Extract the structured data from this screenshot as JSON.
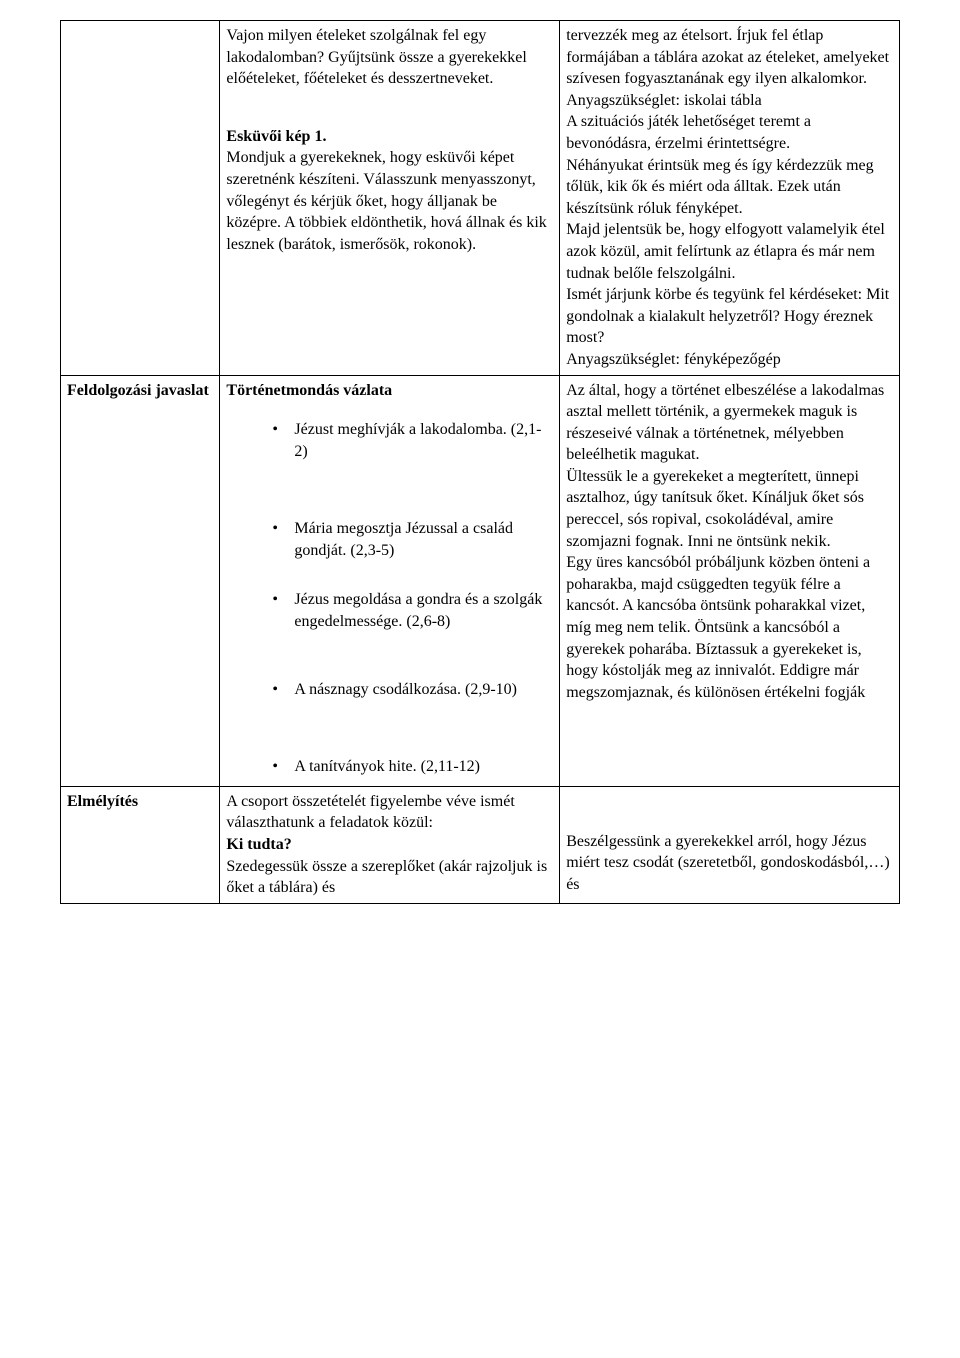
{
  "row1": {
    "label": "",
    "mid": {
      "p1": "Vajon milyen ételeket szolgálnak fel egy lakodalomban? Gyűjtsünk össze a gyerekekkel előételeket, főételeket és desszertneveket.",
      "h1": "Esküvői kép 1.",
      "p2": "Mondjuk a gyerekeknek, hogy esküvői képet szeretnénk készíteni. Válasszunk menyasszonyt, vőlegényt és kérjük őket, hogy álljanak be középre. A többiek eldönthetik, hová állnak és kik lesznek (barátok, ismerősök, rokonok)."
    },
    "right": "tervezzék meg az ételsort. Írjuk fel étlap formájában a táblára azokat az ételeket, amelyeket szívesen fogyasztanának egy ilyen alkalomkor.\nAnyagszükséglet: iskolai tábla\nA szituációs játék lehetőséget teremt a bevonódásra, érzelmi érintettségre.\nNéhányukat érintsük meg és így kérdezzük meg tőlük, kik ők és miért oda álltak. Ezek után készítsünk róluk fényképet.\nMajd jelentsük be, hogy elfogyott valamelyik étel azok közül, amit felírtunk az étlapra és már nem tudnak belőle felszolgálni.\nIsmét járjunk körbe és tegyünk fel kérdéseket: Mit gondolnak a kialakult helyzetről? Hogy éreznek most?\nAnyagszükséglet: fényképezőgép"
  },
  "row2": {
    "label": "Feldolgozási javaslat",
    "mid": {
      "title": "Történetmondás vázlata",
      "items": [
        "Jézust meghívják a lakodalomba. (2,1-2)",
        "Mária megosztja Jézussal a család gondját. (2,3-5)",
        "Jézus megoldása a gondra és a szolgák engedelmessége. (2,6-8)",
        "A násznagy csodálkozása. (2,9-10)",
        "A tanítványok hite. (2,11-12)"
      ]
    },
    "right": "Az által, hogy a történet elbeszélése a lakodalmas asztal mellett történik, a gyermekek maguk is részeseivé válnak a történetnek, mélyebben beleélhetik magukat.\nÜltessük le a gyerekeket a megterített, ünnepi asztalhoz, úgy tanítsuk őket. Kínáljuk őket sós pereccel, sós ropival, csokoládéval, amire szomjazni fognak. Inni ne öntsünk nekik.\nEgy üres kancsóból próbáljunk közben önteni a poharakba, majd csüggedten tegyük félre a kancsót. A kancsóba öntsünk poharakkal vizet, míg meg nem telik. Öntsünk a kancsóból a gyerekek poharába. Bíztassuk a gyerekeket is, hogy kóstolják meg az innivalót. Eddigre már megszomjaznak, és különösen értékelni fogják"
  },
  "row3": {
    "label": "Elmélyítés",
    "mid": {
      "p1": "A csoport összetételét figyelembe véve ismét választhatunk a feladatok közül:",
      "h1": "Ki tudta?",
      "p2": "Szedegessük össze a szereplőket (akár rajzoljuk is őket a táblára) és"
    },
    "right": "Beszélgessünk a gyerekekkel arról, hogy Jézus miért tesz csodát (szeretetből, gondoskodásból,…)  és"
  }
}
